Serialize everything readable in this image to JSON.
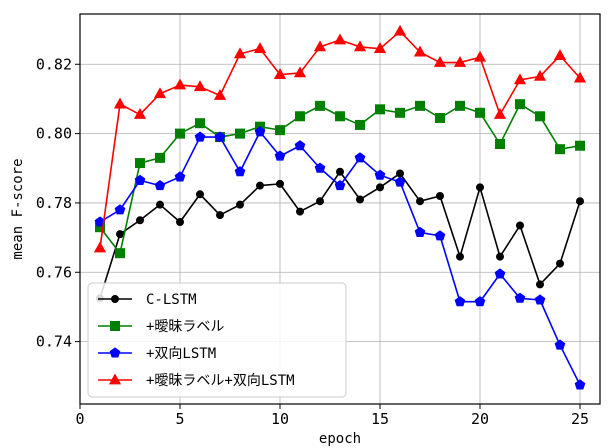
{
  "chart_data": {
    "type": "line",
    "xlabel": "epoch",
    "ylabel": "mean F-score",
    "xlim": [
      0,
      26
    ],
    "ylim": [
      0.722,
      0.8345
    ],
    "xticks": [
      0,
      5,
      10,
      15,
      20,
      25
    ],
    "yticks": [
      0.74,
      0.76,
      0.78,
      0.8,
      0.82
    ],
    "ytick_labels": [
      "0.74",
      "0.76",
      "0.78",
      "0.80",
      "0.82"
    ],
    "grid": true,
    "legend_position": "lower-left",
    "x": [
      1,
      2,
      3,
      4,
      5,
      6,
      7,
      8,
      9,
      10,
      11,
      12,
      13,
      14,
      15,
      16,
      17,
      18,
      19,
      20,
      21,
      22,
      23,
      24,
      25
    ],
    "series": [
      {
        "name": "C-LSTM",
        "color": "#000000",
        "marker": "circle",
        "values": [
          0.7525,
          0.771,
          0.775,
          0.7795,
          0.7745,
          0.7825,
          0.7765,
          0.7795,
          0.785,
          0.7855,
          0.7775,
          0.7805,
          0.789,
          0.781,
          0.7845,
          0.7885,
          0.7805,
          0.782,
          0.7645,
          0.7845,
          0.7645,
          0.7735,
          0.7565,
          0.7625,
          0.7805
        ]
      },
      {
        "name": "+曖昧ラベル",
        "color": "#008000",
        "marker": "square",
        "values": [
          0.773,
          0.7655,
          0.7915,
          0.793,
          0.8,
          0.803,
          0.799,
          0.8,
          0.802,
          0.801,
          0.805,
          0.808,
          0.805,
          0.8025,
          0.807,
          0.806,
          0.808,
          0.8045,
          0.808,
          0.806,
          0.797,
          0.8085,
          0.805,
          0.7955,
          0.7965
        ]
      },
      {
        "name": "+双向LSTM",
        "color": "#0000ff",
        "marker": "pentagon",
        "values": [
          0.7745,
          0.778,
          0.7865,
          0.785,
          0.7875,
          0.799,
          0.799,
          0.789,
          0.8005,
          0.7935,
          0.7965,
          0.79,
          0.785,
          0.793,
          0.788,
          0.786,
          0.7715,
          0.7705,
          0.7515,
          0.7515,
          0.7595,
          0.7525,
          0.752,
          0.739,
          0.7275
        ]
      },
      {
        "name": "+曖昧ラベル+双向LSTM",
        "color": "#ff0000",
        "marker": "triangle",
        "values": [
          0.767,
          0.8085,
          0.8055,
          0.8115,
          0.814,
          0.8135,
          0.811,
          0.823,
          0.8245,
          0.817,
          0.8175,
          0.825,
          0.827,
          0.825,
          0.8245,
          0.8295,
          0.8235,
          0.8205,
          0.8205,
          0.822,
          0.8055,
          0.8155,
          0.8165,
          0.8225,
          0.816
        ]
      }
    ]
  }
}
